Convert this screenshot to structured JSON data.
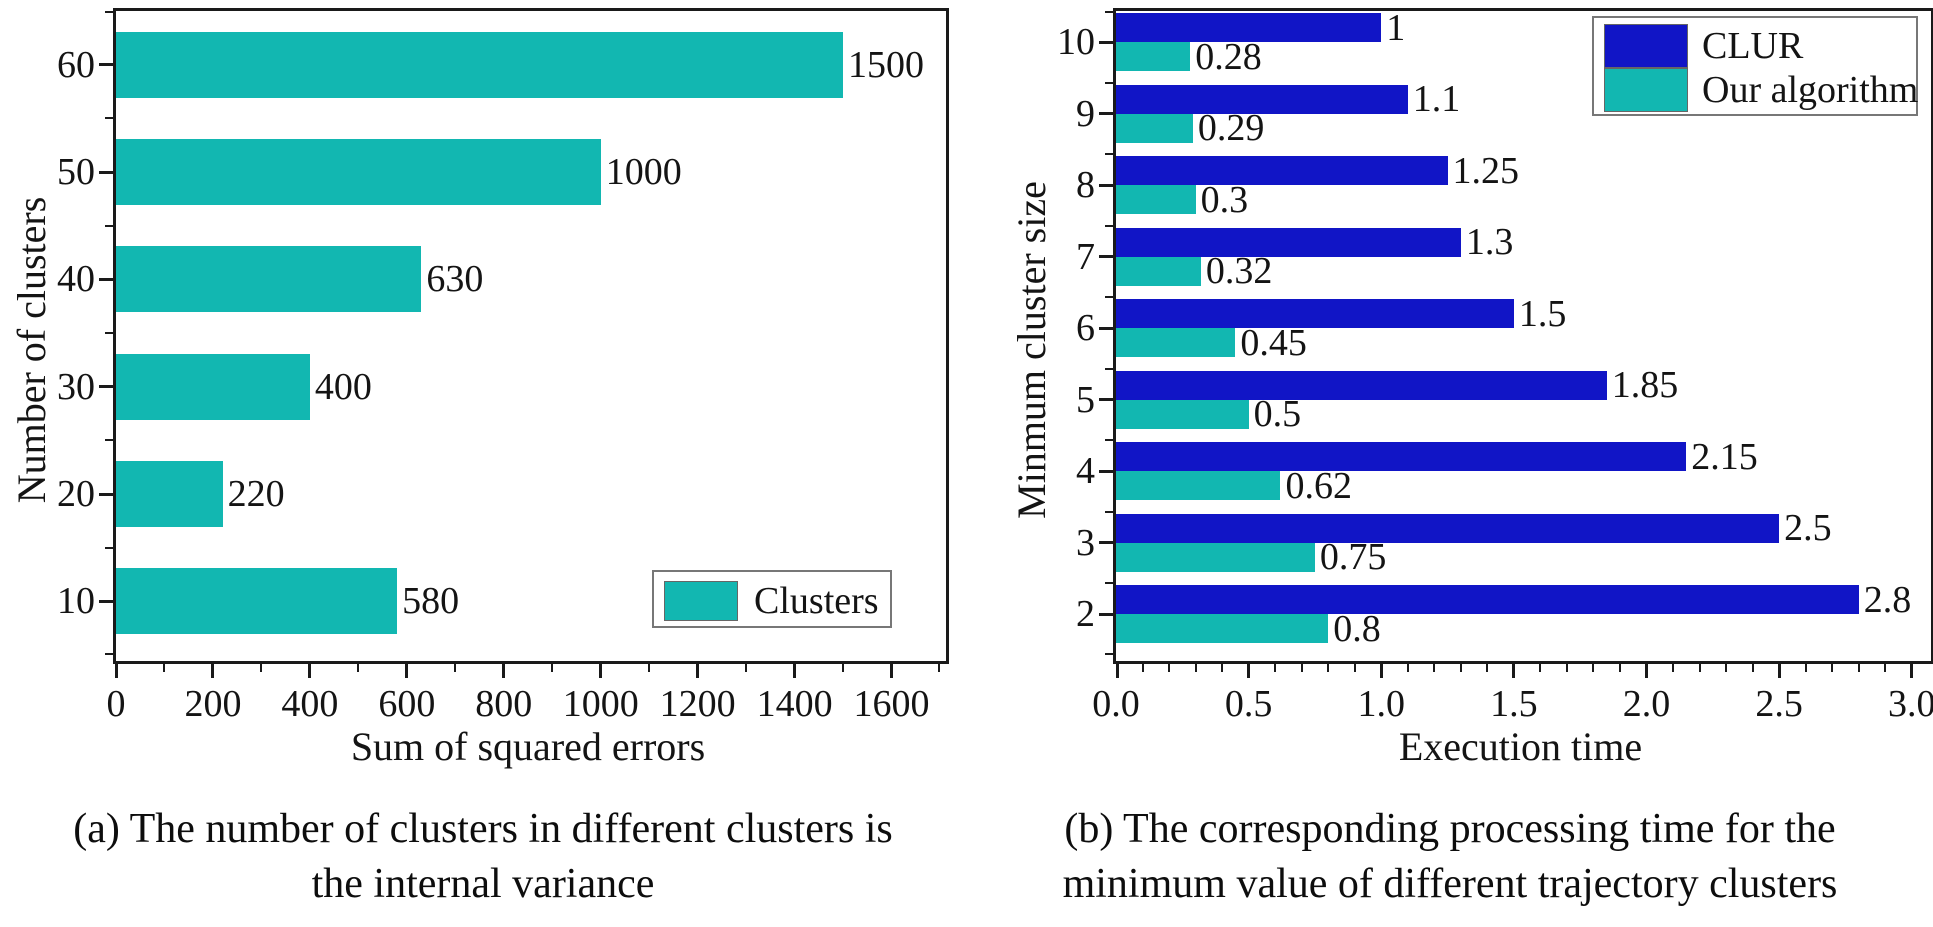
{
  "colors": {
    "teal": "#12b7b1",
    "blue": "#1115c6",
    "axis": "#1a1a1a",
    "text": "#141414"
  },
  "chart_data": [
    {
      "type": "bar",
      "orientation": "horizontal",
      "panel": "a",
      "xlabel": "Sum of squared errors",
      "ylabel": "Number of clusters",
      "categories": [
        "60",
        "50",
        "40",
        "30",
        "20",
        "10"
      ],
      "values": [
        1500,
        1000,
        630,
        400,
        220,
        580
      ],
      "value_labels": [
        "1500",
        "1000",
        "630",
        "400",
        "220",
        "580"
      ],
      "xlim": [
        0,
        1700
      ],
      "xticks": [
        0,
        200,
        400,
        600,
        800,
        1000,
        1200,
        1400,
        1600
      ],
      "xtick_labels": [
        "0",
        "200",
        "400",
        "600",
        "800",
        "1000",
        "1200",
        "1400",
        "1600"
      ],
      "minor_x_step": 100,
      "bar_color": "#12b7b1",
      "grid": false,
      "legend_position": "bottom-right",
      "legend_label": "Clusters"
    },
    {
      "type": "bar",
      "orientation": "horizontal",
      "panel": "b",
      "xlabel": "Execution time",
      "ylabel": "Minmum cluster size",
      "categories": [
        "10",
        "9",
        "8",
        "7",
        "6",
        "5",
        "4",
        "3",
        "2"
      ],
      "series": [
        {
          "name": "CLUR",
          "color": "#1115c6",
          "values": [
            1,
            1.1,
            1.25,
            1.3,
            1.5,
            1.85,
            2.15,
            2.5,
            2.8
          ],
          "value_labels": [
            "1",
            "1.1",
            "1.25",
            "1.3",
            "1.5",
            "1.85",
            "2.15",
            "2.5",
            "2.8"
          ]
        },
        {
          "name": "Our algorithm",
          "color": "#12b7b1",
          "values": [
            0.28,
            0.29,
            0.3,
            0.32,
            0.45,
            0.5,
            0.62,
            0.75,
            0.8
          ],
          "value_labels": [
            "0.28",
            "0.29",
            "0.3",
            "0.32",
            "0.45",
            "0.5",
            "0.62",
            "0.75",
            "0.8"
          ]
        }
      ],
      "xlim": [
        0,
        3.05
      ],
      "xticks": [
        0,
        0.5,
        1,
        1.5,
        2,
        2.5,
        3
      ],
      "xtick_labels": [
        "0.0",
        "0.5",
        "1.0",
        "1.5",
        "2.0",
        "2.5",
        "3.0"
      ],
      "minor_x_step": 0.1,
      "grid": false,
      "legend_position": "top-right"
    }
  ],
  "captions": {
    "a_line1": "(a) The number of clusters in different clusters is",
    "a_line2": "the internal variance",
    "b_line1": "(b) The corresponding processing time for the",
    "b_line2": "minimum value of different trajectory clusters"
  }
}
